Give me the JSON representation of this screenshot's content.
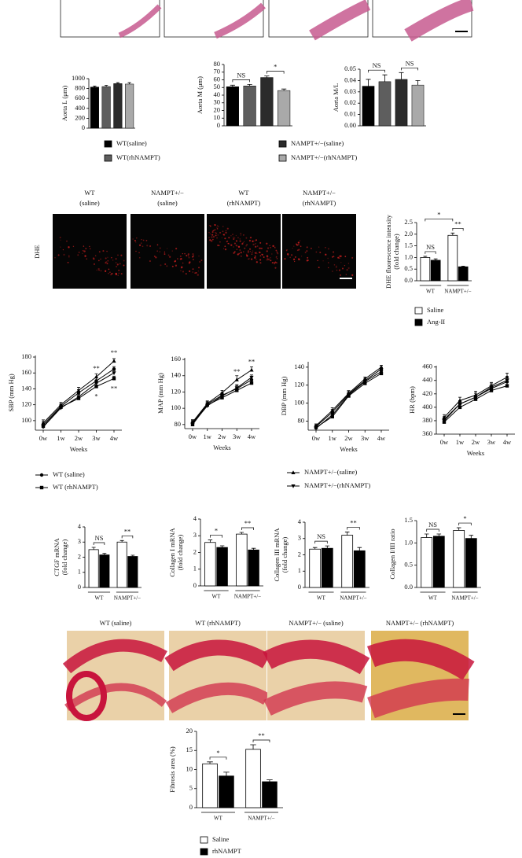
{
  "chart_data": [
    {
      "type": "bar",
      "ylabel": [
        "Aorta L (μm)"
      ],
      "ylim": [
        0,
        1000
      ],
      "yticks": [
        0,
        200,
        400,
        600,
        800,
        1000
      ],
      "values": [
        830,
        840,
        900,
        890
      ],
      "errors": [
        20,
        25,
        20,
        30
      ],
      "colors": [
        "#000000",
        "#5e5e5e",
        "#2b2b2b",
        "#a9a9a9"
      ]
    },
    {
      "type": "bar",
      "ylabel": [
        "Aorta M (μm)"
      ],
      "ylim": [
        0,
        80
      ],
      "yticks": [
        0,
        10,
        20,
        30,
        40,
        50,
        60,
        70,
        80
      ],
      "values": [
        51,
        52,
        63,
        46
      ],
      "errors": [
        2,
        2,
        2,
        2
      ],
      "colors": [
        "#000000",
        "#5e5e5e",
        "#2b2b2b",
        "#a9a9a9"
      ],
      "annotations": [
        "NS",
        "*"
      ]
    },
    {
      "type": "bar",
      "ylabel": [
        "Aorta M/L"
      ],
      "ylim": [
        0,
        0.05
      ],
      "yticks": [
        {
          "value": 0,
          "label": "0.00"
        },
        {
          "value": 0.01,
          "label": "0.01"
        },
        {
          "value": 0.02,
          "label": "0.02"
        },
        {
          "value": 0.03,
          "label": "0.03"
        },
        {
          "value": 0.04,
          "label": "0.04"
        },
        {
          "value": 0.05,
          "label": "0.05"
        }
      ],
      "values": [
        0.035,
        0.039,
        0.041,
        0.036
      ],
      "errors": [
        0.006,
        0.006,
        0.006,
        0.004
      ],
      "colors": [
        "#000000",
        "#5e5e5e",
        "#2b2b2b",
        "#a9a9a9"
      ],
      "annotations": [
        "NS",
        "NS"
      ]
    },
    {
      "type": "grouped_bar",
      "ylabel": [
        "DHE fluorescence intensity",
        "(fold change)"
      ],
      "ylim": [
        0,
        2.5
      ],
      "yticks": [
        {
          "value": 0,
          "label": "0.0"
        },
        {
          "value": 0.5,
          "label": "0.5"
        },
        {
          "value": 1,
          "label": "1.0"
        },
        {
          "value": 1.5,
          "label": "1.5"
        },
        {
          "value": 2,
          "label": "2.0"
        },
        {
          "value": 2.5,
          "label": "2.5"
        }
      ],
      "categories": [
        "WT",
        "NAMPT+/−"
      ],
      "series": [
        {
          "color": "#ffffff",
          "values": [
            1.0,
            1.95
          ],
          "errors": [
            0.05,
            0.1
          ]
        },
        {
          "color": "#000000",
          "values": [
            0.88,
            0.6
          ],
          "errors": [
            0.06,
            0.03
          ]
        }
      ],
      "annotations": [
        "NS",
        "**",
        "*"
      ]
    },
    {
      "type": "line",
      "ylabel": [
        "SBP (mm Hg)"
      ],
      "xlabel": "Weeks",
      "ylim": [
        88,
        182
      ],
      "yticks": [
        100,
        120,
        140,
        160,
        180
      ],
      "categories": [
        "0w",
        "1w",
        "2w",
        "3w",
        "4w"
      ],
      "series": [
        {
          "marker": "circle",
          "color": "#000000",
          "values": [
            95,
            118,
            135,
            150,
            165
          ],
          "errors": [
            4,
            3,
            4,
            4,
            3
          ]
        },
        {
          "marker": "square",
          "color": "#000000",
          "values": [
            93,
            117,
            128,
            143,
            153
          ],
          "errors": [
            4,
            3,
            3,
            4,
            3
          ]
        },
        {
          "marker": "triangle-up",
          "color": "#000000",
          "values": [
            97,
            120,
            138,
            155,
            175
          ],
          "errors": [
            4,
            3,
            4,
            4,
            3
          ]
        },
        {
          "marker": "triangle-down",
          "color": "#000000",
          "values": [
            92,
            116,
            130,
            147,
            160
          ],
          "errors": [
            4,
            3,
            3,
            4,
            3
          ]
        }
      ],
      "annotations": [
        "**",
        "**",
        "*",
        "**"
      ]
    },
    {
      "type": "line",
      "ylabel": [
        "MAP (mm Hg)"
      ],
      "xlabel": "Weeks",
      "ylim": [
        75,
        162
      ],
      "yticks": [
        80,
        100,
        120,
        140,
        160
      ],
      "categories": [
        "0w",
        "1w",
        "2w",
        "3w",
        "4w"
      ],
      "series": [
        {
          "marker": "circle",
          "color": "#000000",
          "values": [
            82,
            105,
            116,
            124,
            135
          ],
          "errors": [
            3,
            3,
            3,
            4,
            4
          ]
        },
        {
          "marker": "square",
          "color": "#000000",
          "values": [
            80,
            104,
            113,
            122,
            131
          ],
          "errors": [
            3,
            3,
            3,
            4,
            3
          ]
        },
        {
          "marker": "triangle-up",
          "color": "#000000",
          "values": [
            83,
            106,
            119,
            135,
            147
          ],
          "errors": [
            3,
            3,
            3,
            5,
            4
          ]
        },
        {
          "marker": "triangle-down",
          "color": "#000000",
          "values": [
            81,
            103,
            115,
            125,
            138
          ],
          "errors": [
            3,
            3,
            3,
            4,
            3
          ]
        }
      ],
      "annotations": [
        "**",
        "**"
      ]
    },
    {
      "type": "line",
      "ylabel": [
        "DBP (mm Hg)"
      ],
      "xlabel": "Weeks",
      "ylim": [
        70,
        146
      ],
      "yticks": [
        80,
        100,
        120,
        140
      ],
      "categories": [
        "0w",
        "1w",
        "2w",
        "3w",
        "4w"
      ],
      "series": [
        {
          "marker": "circle",
          "color": "#000000",
          "values": [
            74,
            90,
            110,
            125,
            138
          ],
          "errors": [
            2,
            3,
            3,
            2,
            2
          ]
        },
        {
          "marker": "square",
          "color": "#000000",
          "values": [
            73,
            85,
            108,
            122,
            133
          ],
          "errors": [
            2,
            3,
            3,
            2,
            2
          ]
        },
        {
          "marker": "triangle-up",
          "color": "#000000",
          "values": [
            75,
            92,
            111,
            127,
            140
          ],
          "errors": [
            2,
            3,
            3,
            2,
            2
          ]
        },
        {
          "marker": "triangle-down",
          "color": "#000000",
          "values": [
            72,
            87,
            109,
            124,
            135
          ],
          "errors": [
            2,
            3,
            3,
            2,
            2
          ]
        }
      ]
    },
    {
      "type": "line",
      "ylabel": [
        "HR (bpm)"
      ],
      "xlabel": "Weeks",
      "ylim": [
        360,
        462
      ],
      "yticks": [
        360,
        380,
        400,
        420,
        440,
        460
      ],
      "categories": [
        "0w",
        "1w",
        "2w",
        "3w",
        "4w"
      ],
      "series": [
        {
          "marker": "circle",
          "color": "#000000",
          "values": [
            382,
            405,
            415,
            428,
            438
          ],
          "errors": [
            4,
            5,
            6,
            5,
            6
          ]
        },
        {
          "marker": "square",
          "color": "#000000",
          "values": [
            378,
            400,
            412,
            425,
            432
          ],
          "errors": [
            4,
            5,
            6,
            5,
            6
          ]
        },
        {
          "marker": "triangle-up",
          "color": "#000000",
          "values": [
            385,
            410,
            418,
            432,
            445
          ],
          "errors": [
            4,
            5,
            6,
            5,
            6
          ]
        },
        {
          "marker": "triangle-down",
          "color": "#000000",
          "values": [
            380,
            405,
            415,
            430,
            440
          ],
          "errors": [
            4,
            5,
            6,
            5,
            6
          ]
        }
      ]
    },
    {
      "type": "grouped_bar",
      "ylabel": [
        "CTGF mRNA",
        "(fold change)"
      ],
      "ylim": [
        0,
        4
      ],
      "yticks": [
        0,
        1,
        2,
        3,
        4
      ],
      "categories": [
        "WT",
        "NAMPT+/−"
      ],
      "series": [
        {
          "color": "#ffffff",
          "values": [
            2.5,
            3.0
          ],
          "errors": [
            0.15,
            0.1
          ]
        },
        {
          "color": "#000000",
          "values": [
            2.15,
            2.05
          ],
          "errors": [
            0.1,
            0.08
          ]
        }
      ],
      "annotations": [
        "NS",
        "**"
      ]
    },
    {
      "type": "grouped_bar",
      "ylabel": [
        "Collagen I mRNA",
        "(fold change)"
      ],
      "ylim": [
        0,
        4
      ],
      "yticks": [
        0,
        1,
        2,
        3,
        4
      ],
      "categories": [
        "WT",
        "NAMPT+/−"
      ],
      "series": [
        {
          "color": "#ffffff",
          "values": [
            2.6,
            3.1
          ],
          "errors": [
            0.15,
            0.1
          ]
        },
        {
          "color": "#000000",
          "values": [
            2.3,
            2.15
          ],
          "errors": [
            0.1,
            0.1
          ]
        }
      ],
      "annotations": [
        "*",
        "**"
      ]
    },
    {
      "type": "grouped_bar",
      "ylabel": [
        "Collagen III mRNA",
        "(fold change)"
      ],
      "ylim": [
        0,
        4
      ],
      "yticks": [
        0,
        1,
        2,
        3,
        4
      ],
      "categories": [
        "WT",
        "NAMPT+/−"
      ],
      "series": [
        {
          "color": "#ffffff",
          "values": [
            2.35,
            3.2
          ],
          "errors": [
            0.1,
            0.2
          ]
        },
        {
          "color": "#000000",
          "values": [
            2.4,
            2.25
          ],
          "errors": [
            0.15,
            0.2
          ]
        }
      ],
      "annotations": [
        "NS",
        "**"
      ]
    },
    {
      "type": "grouped_bar",
      "ylabel": [
        "Collagen I/III ratio"
      ],
      "ylim": [
        0,
        1.5
      ],
      "yticks": [
        {
          "value": 0,
          "label": "0.0"
        },
        {
          "value": 0.5,
          "label": "0.5"
        },
        {
          "value": 1,
          "label": "1.0"
        },
        {
          "value": 1.5,
          "label": "1.5"
        }
      ],
      "categories": [
        "WT",
        "NAMPT+/−"
      ],
      "series": [
        {
          "color": "#ffffff",
          "values": [
            1.12,
            1.28
          ],
          "errors": [
            0.08,
            0.06
          ]
        },
        {
          "color": "#000000",
          "values": [
            1.15,
            1.1
          ],
          "errors": [
            0.05,
            0.07
          ]
        }
      ],
      "annotations": [
        "NS",
        "*"
      ]
    },
    {
      "type": "grouped_bar",
      "ylabel": [
        "Fibrosis area (%)"
      ],
      "ylim": [
        0,
        20
      ],
      "yticks": [
        0,
        5,
        10,
        15,
        20
      ],
      "categories": [
        "WT",
        "NAMPT+/−"
      ],
      "series": [
        {
          "color": "#ffffff",
          "values": [
            11.5,
            15.3
          ],
          "errors": [
            0.5,
            1.2
          ]
        },
        {
          "color": "#000000",
          "values": [
            8.3,
            6.8
          ],
          "errors": [
            1.0,
            0.5
          ]
        }
      ],
      "annotations": [
        "*",
        "**"
      ]
    }
  ],
  "legends": [
    {
      "entries": [
        {
          "name": "WT(saline)",
          "color": "#000000"
        },
        {
          "name": "WT(rhNAMPT)",
          "color": "#5e5e5e"
        },
        {
          "name": "NAMPT+/−(saline)",
          "color": "#2b2b2b"
        },
        {
          "name": "NAMPT+/−(rhNAMPT)",
          "color": "#a9a9a9"
        }
      ]
    },
    {
      "entries": [
        {
          "name": "Saline",
          "color": "#ffffff"
        },
        {
          "name": "Ang-II",
          "color": "#000000"
        }
      ]
    },
    {
      "entries": [
        {
          "name": "WT (saline)",
          "marker": "circle"
        },
        {
          "name": "WT (rhNAMPT)",
          "marker": "square"
        },
        {
          "name": "NAMPT+/−(saline)",
          "marker": "triangle-up"
        },
        {
          "name": "NAMPT+/−(rhNAMPT)",
          "marker": "triangle-down"
        }
      ]
    },
    {
      "entries": [
        {
          "name": "Saline",
          "color": "#ffffff"
        },
        {
          "name": "rhNAMPT",
          "color": "#000000"
        }
      ]
    }
  ],
  "dhe_images": {
    "row_label": "DHE",
    "labels": [
      [
        "WT",
        "(saline)"
      ],
      [
        "NAMPT+/−",
        "(saline)"
      ],
      [
        "WT",
        "(rhNAMPT)"
      ],
      [
        "NAMPT+/−",
        "(rhNAMPT)"
      ]
    ]
  },
  "sirius_images": {
    "labels": [
      "WT (saline)",
      "WT (rhNAMPT)",
      "NAMPT+/− (saline)",
      "NAMPT+/− (rhNAMPT)"
    ]
  }
}
